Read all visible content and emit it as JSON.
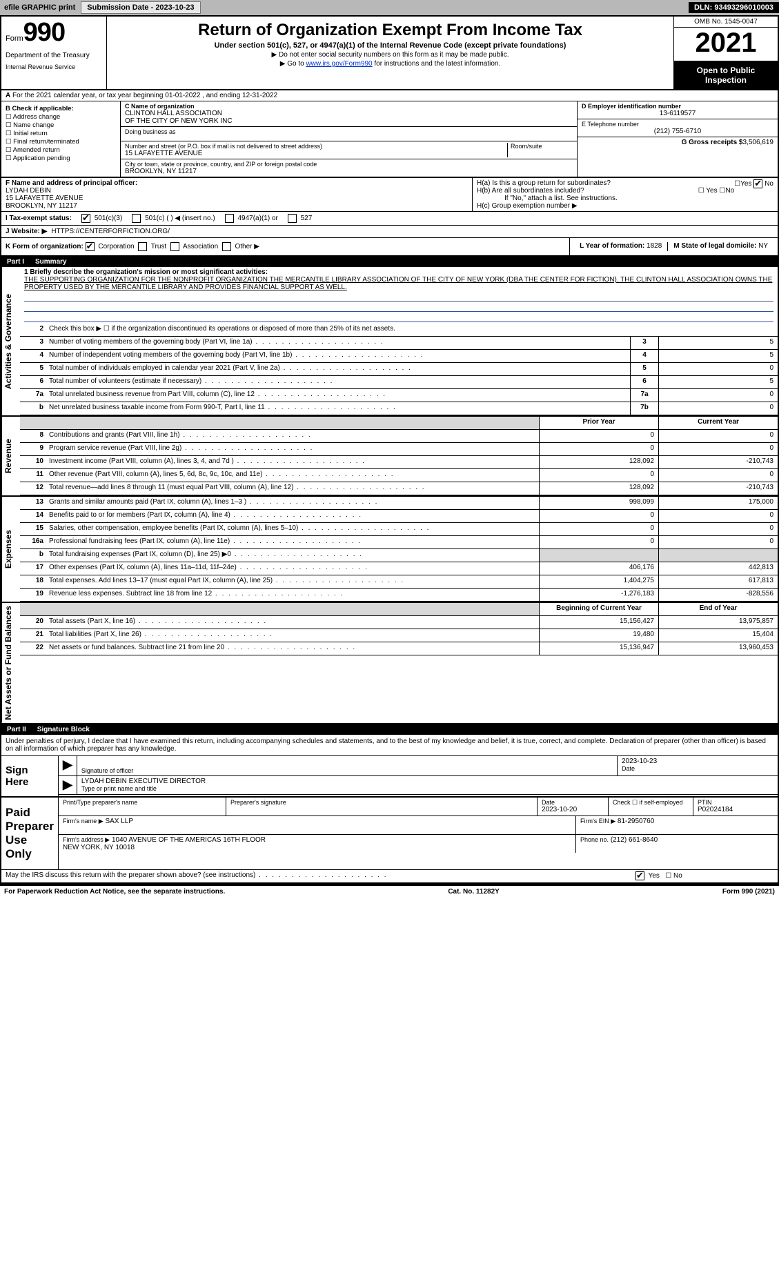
{
  "topbar": {
    "efile": "efile GRAPHIC print",
    "submission_label": "Submission Date - 2023-10-23",
    "dln_label": "DLN: 93493296010003"
  },
  "header": {
    "form_word": "Form",
    "form_num": "990",
    "dept": "Department of the Treasury",
    "irs": "Internal Revenue Service",
    "title": "Return of Organization Exempt From Income Tax",
    "subtitle": "Under section 501(c), 527, or 4947(a)(1) of the Internal Revenue Code (except private foundations)",
    "note1": "▶ Do not enter social security numbers on this form as it may be made public.",
    "note2_pre": "▶ Go to ",
    "note2_link": "www.irs.gov/Form990",
    "note2_post": " for instructions and the latest information.",
    "omb": "OMB No. 1545-0047",
    "year": "2021",
    "open": "Open to Public Inspection"
  },
  "secA": "For the 2021 calendar year, or tax year beginning 01-01-2022    , and ending 12-31-2022",
  "colB": {
    "hdr": "B Check if applicable:",
    "items": [
      "☐ Address change",
      "☐ Name change",
      "☐ Initial return",
      "☐ Final return/terminated",
      "☐ Amended return",
      "☐ Application pending"
    ]
  },
  "colC": {
    "name_label": "C Name of organization",
    "name1": "CLINTON HALL ASSOCIATION",
    "name2": "OF THE CITY OF NEW YORK INC",
    "dba_label": "Doing business as",
    "dba": "",
    "addr_label": "Number and street (or P.O. box if mail is not delivered to street address)",
    "room_label": "Room/suite",
    "addr": "15 LAFAYETTE AVENUE",
    "city_label": "City or town, state or province, country, and ZIP or foreign postal code",
    "city": "BROOKLYN, NY  11217"
  },
  "colDE": {
    "d_label": "D Employer identification number",
    "ein": "13-6119577",
    "e_label": "E Telephone number",
    "phone": "(212) 755-6710",
    "g_label": "G Gross receipts $",
    "g_val": "3,506,619"
  },
  "f": {
    "label": "F  Name and address of principal officer:",
    "name": "LYDAH DEBIN",
    "addr1": "15 LAFAYETTE AVENUE",
    "addr2": "BROOKLYN, NY  11217"
  },
  "h": {
    "a": "H(a)  Is this a group return for subordinates?",
    "a_yes": "☐Yes",
    "a_no_chk": true,
    "a_no": "No",
    "b": "H(b)  Are all subordinates included?",
    "b_yn": "☐ Yes  ☐No",
    "b_note": "If \"No,\" attach a list. See instructions.",
    "c": "H(c)  Group exemption number ▶"
  },
  "i": {
    "label": "I   Tax-exempt status:",
    "c3": "501(c)(3)",
    "c": "501(c) (   ) ◀ (insert no.)",
    "a1": "4947(a)(1) or",
    "527": "527"
  },
  "j": {
    "label": "J    Website: ▶",
    "val": "HTTPS://CENTERFORFICTION.ORG/"
  },
  "k": {
    "label": "K Form of organization:",
    "opts": [
      "Corporation",
      "Trust",
      "Association",
      "Other ▶"
    ],
    "checked": 0,
    "l_label": "L Year of formation:",
    "l_val": "1828",
    "m_label": "M State of legal domicile:",
    "m_val": "NY"
  },
  "part1": {
    "title": "Part I",
    "name": "Summary",
    "mission_label": "1  Briefly describe the organization's mission or most significant activities:",
    "mission": "THE SUPPORTING ORGANIZATION FOR THE NONPROFIT ORGANIZATION THE MERCANTILE LIBRARY ASSOCIATION OF THE CITY OF NEW YORK (DBA THE CENTER FOR FICTION). THE CLINTON HALL ASSOCIATION OWNS THE PROPERTY USED BY THE MERCANTILE LIBRARY AND PROVIDES FINANCIAL SUPPORT AS WELL.",
    "line2": "Check this box ▶ ☐  if the organization discontinued its operations or disposed of more than 25% of its net assets.",
    "rows_gov": [
      {
        "n": "3",
        "d": "Number of voting members of the governing body (Part VI, line 1a)",
        "box": "3",
        "v": "5"
      },
      {
        "n": "4",
        "d": "Number of independent voting members of the governing body (Part VI, line 1b)",
        "box": "4",
        "v": "5"
      },
      {
        "n": "5",
        "d": "Total number of individuals employed in calendar year 2021 (Part V, line 2a)",
        "box": "5",
        "v": "0"
      },
      {
        "n": "6",
        "d": "Total number of volunteers (estimate if necessary)",
        "box": "6",
        "v": "5"
      },
      {
        "n": "7a",
        "d": "Total unrelated business revenue from Part VIII, column (C), line 12",
        "box": "7a",
        "v": "0"
      },
      {
        "n": "b",
        "d": "Net unrelated business taxable income from Form 990-T, Part I, line 11",
        "box": "7b",
        "v": "0"
      }
    ],
    "col_py": "Prior Year",
    "col_cy": "Current Year",
    "rows_rev": [
      {
        "n": "8",
        "d": "Contributions and grants (Part VIII, line 1h)",
        "py": "0",
        "cy": "0"
      },
      {
        "n": "9",
        "d": "Program service revenue (Part VIII, line 2g)",
        "py": "0",
        "cy": "0"
      },
      {
        "n": "10",
        "d": "Investment income (Part VIII, column (A), lines 3, 4, and 7d )",
        "py": "128,092",
        "cy": "-210,743"
      },
      {
        "n": "11",
        "d": "Other revenue (Part VIII, column (A), lines 5, 6d, 8c, 9c, 10c, and 11e)",
        "py": "0",
        "cy": "0"
      },
      {
        "n": "12",
        "d": "Total revenue—add lines 8 through 11 (must equal Part VIII, column (A), line 12)",
        "py": "128,092",
        "cy": "-210,743"
      }
    ],
    "rows_exp": [
      {
        "n": "13",
        "d": "Grants and similar amounts paid (Part IX, column (A), lines 1–3 )",
        "py": "998,099",
        "cy": "175,000"
      },
      {
        "n": "14",
        "d": "Benefits paid to or for members (Part IX, column (A), line 4)",
        "py": "0",
        "cy": "0"
      },
      {
        "n": "15",
        "d": "Salaries, other compensation, employee benefits (Part IX, column (A), lines 5–10)",
        "py": "0",
        "cy": "0"
      },
      {
        "n": "16a",
        "d": "Professional fundraising fees (Part IX, column (A), line 11e)",
        "py": "0",
        "cy": "0"
      },
      {
        "n": "b",
        "d": "Total fundraising expenses (Part IX, column (D), line 25) ▶0",
        "py": "",
        "cy": "",
        "shade": true
      },
      {
        "n": "17",
        "d": "Other expenses (Part IX, column (A), lines 11a–11d, 11f–24e)",
        "py": "406,176",
        "cy": "442,813"
      },
      {
        "n": "18",
        "d": "Total expenses. Add lines 13–17 (must equal Part IX, column (A), line 25)",
        "py": "1,404,275",
        "cy": "617,813"
      },
      {
        "n": "19",
        "d": "Revenue less expenses. Subtract line 18 from line 12",
        "py": "-1,276,183",
        "cy": "-828,556"
      }
    ],
    "col_boy": "Beginning of Current Year",
    "col_eoy": "End of Year",
    "rows_na": [
      {
        "n": "20",
        "d": "Total assets (Part X, line 16)",
        "py": "15,156,427",
        "cy": "13,975,857"
      },
      {
        "n": "21",
        "d": "Total liabilities (Part X, line 26)",
        "py": "19,480",
        "cy": "15,404"
      },
      {
        "n": "22",
        "d": "Net assets or fund balances. Subtract line 21 from line 20",
        "py": "15,136,947",
        "cy": "13,960,453"
      }
    ],
    "side_gov": "Activities & Governance",
    "side_rev": "Revenue",
    "side_exp": "Expenses",
    "side_na": "Net Assets or Fund Balances"
  },
  "part2": {
    "title": "Part II",
    "name": "Signature Block",
    "penalties": "Under penalties of perjury, I declare that I have examined this return, including accompanying schedules and statements, and to the best of my knowledge and belief, it is true, correct, and complete. Declaration of preparer (other than officer) is based on all information of which preparer has any knowledge.",
    "sign_here": "Sign Here",
    "sig_of_officer": "Signature of officer",
    "sig_date": "2023-10-23",
    "date_lbl": "Date",
    "officer_name": "LYDAH DEBIN  EXECUTIVE DIRECTOR",
    "type_name": "Type or print name and title",
    "paid": "Paid Preparer Use Only",
    "prep_name_lbl": "Print/Type preparer's name",
    "prep_name": "",
    "prep_sig_lbl": "Preparer's signature",
    "prep_date_lbl": "Date",
    "prep_date": "2023-10-20",
    "self_emp": "Check ☐ if self-employed",
    "ptin_lbl": "PTIN",
    "ptin": "P02024184",
    "firm_name_lbl": "Firm's name    ▶",
    "firm_name": "SAX LLP",
    "firm_ein_lbl": "Firm's EIN ▶",
    "firm_ein": "81-2950760",
    "firm_addr_lbl": "Firm's address ▶",
    "firm_addr": "1040 AVENUE OF THE AMERICAS 16TH FLOOR\nNEW YORK, NY  10018",
    "phone_lbl": "Phone no.",
    "phone": "(212) 661-8640",
    "discuss": "May the IRS discuss this return with the preparer shown above? (see instructions)",
    "discuss_yes": "Yes",
    "discuss_no": "☐ No"
  },
  "footer": {
    "pra": "For Paperwork Reduction Act Notice, see the separate instructions.",
    "cat": "Cat. No. 11282Y",
    "form": "Form 990 (2021)"
  }
}
